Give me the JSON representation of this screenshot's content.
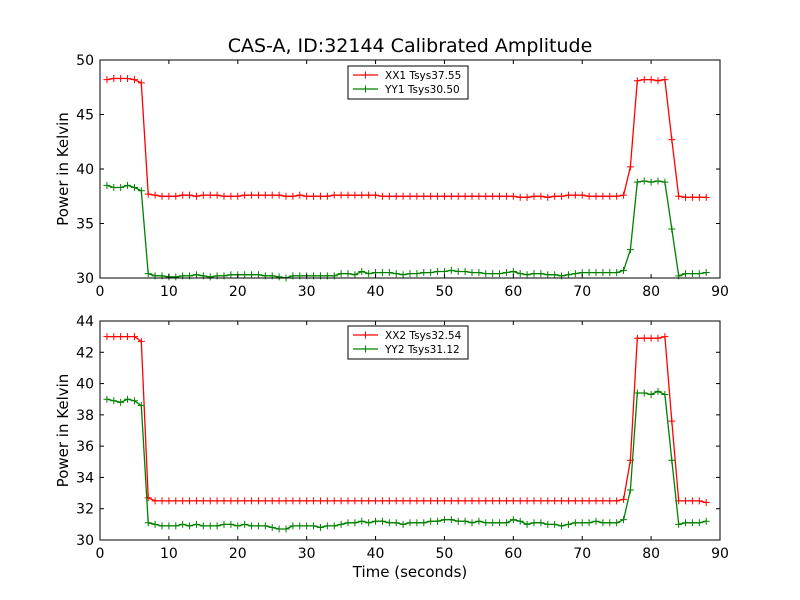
{
  "figure_title": "CAS-A, ID:32144 Calibrated Amplitude",
  "chart_data": [
    {
      "type": "line",
      "title": "CAS-A, ID:32144 Calibrated Amplitude",
      "xlabel": "",
      "ylabel": "Power in Kelvin",
      "xlim": [
        0,
        90
      ],
      "ylim": [
        30,
        50
      ],
      "xticks": [
        0,
        10,
        20,
        30,
        40,
        50,
        60,
        70,
        80,
        90
      ],
      "yticks": [
        30,
        35,
        40,
        45,
        50
      ],
      "grid": false,
      "legend_position": "top-center",
      "x": [
        1,
        2,
        3,
        4,
        5,
        6,
        7,
        8,
        9,
        10,
        11,
        12,
        13,
        14,
        15,
        16,
        17,
        18,
        19,
        20,
        21,
        22,
        23,
        24,
        25,
        26,
        27,
        28,
        29,
        30,
        31,
        32,
        33,
        34,
        35,
        36,
        37,
        38,
        39,
        40,
        41,
        42,
        43,
        44,
        45,
        46,
        47,
        48,
        49,
        50,
        51,
        52,
        53,
        54,
        55,
        56,
        57,
        58,
        59,
        60,
        61,
        62,
        63,
        64,
        65,
        66,
        67,
        68,
        69,
        70,
        71,
        72,
        73,
        74,
        75,
        76,
        77,
        78,
        79,
        80,
        81,
        82,
        83,
        84,
        85,
        86,
        87,
        88
      ],
      "series": [
        {
          "name": "XX1 Tsys37.55",
          "color": "#ff0000",
          "values": [
            48.2,
            48.3,
            48.3,
            48.3,
            48.2,
            47.9,
            37.7,
            37.6,
            37.5,
            37.5,
            37.5,
            37.6,
            37.6,
            37.5,
            37.6,
            37.6,
            37.6,
            37.5,
            37.5,
            37.5,
            37.6,
            37.6,
            37.6,
            37.6,
            37.6,
            37.6,
            37.5,
            37.5,
            37.6,
            37.5,
            37.5,
            37.5,
            37.5,
            37.6,
            37.6,
            37.6,
            37.6,
            37.6,
            37.6,
            37.6,
            37.5,
            37.5,
            37.5,
            37.5,
            37.5,
            37.5,
            37.5,
            37.5,
            37.5,
            37.5,
            37.5,
            37.5,
            37.5,
            37.5,
            37.5,
            37.5,
            37.5,
            37.5,
            37.5,
            37.5,
            37.4,
            37.4,
            37.5,
            37.5,
            37.4,
            37.5,
            37.5,
            37.6,
            37.6,
            37.6,
            37.5,
            37.5,
            37.5,
            37.5,
            37.5,
            37.6,
            40.2,
            48.1,
            48.2,
            48.2,
            48.1,
            48.2,
            42.7,
            37.5,
            37.4,
            37.4,
            37.4,
            37.4
          ]
        },
        {
          "name": "YY1 Tsys30.50",
          "color": "#008000",
          "values": [
            38.5,
            38.3,
            38.3,
            38.5,
            38.3,
            38.0,
            30.4,
            30.2,
            30.2,
            30.1,
            30.1,
            30.2,
            30.2,
            30.3,
            30.2,
            30.1,
            30.2,
            30.2,
            30.3,
            30.3,
            30.3,
            30.3,
            30.3,
            30.2,
            30.2,
            30.1,
            30.0,
            30.2,
            30.2,
            30.2,
            30.2,
            30.2,
            30.2,
            30.2,
            30.4,
            30.4,
            30.3,
            30.6,
            30.4,
            30.5,
            30.5,
            30.5,
            30.4,
            30.3,
            30.4,
            30.4,
            30.5,
            30.5,
            30.6,
            30.6,
            30.7,
            30.6,
            30.6,
            30.5,
            30.5,
            30.4,
            30.4,
            30.4,
            30.5,
            30.6,
            30.4,
            30.3,
            30.4,
            30.4,
            30.3,
            30.3,
            30.2,
            30.3,
            30.4,
            30.5,
            30.5,
            30.5,
            30.5,
            30.5,
            30.5,
            30.7,
            32.6,
            38.8,
            38.9,
            38.8,
            38.9,
            38.8,
            34.5,
            30.2,
            30.4,
            30.4,
            30.4,
            30.5
          ]
        }
      ]
    },
    {
      "type": "line",
      "title": "",
      "xlabel": "Time (seconds)",
      "ylabel": "Power in Kelvin",
      "xlim": [
        0,
        90
      ],
      "ylim": [
        30,
        44
      ],
      "xticks": [
        0,
        10,
        20,
        30,
        40,
        50,
        60,
        70,
        80,
        90
      ],
      "yticks": [
        30,
        32,
        34,
        36,
        38,
        40,
        42,
        44
      ],
      "grid": false,
      "legend_position": "top-center",
      "x": [
        1,
        2,
        3,
        4,
        5,
        6,
        7,
        8,
        9,
        10,
        11,
        12,
        13,
        14,
        15,
        16,
        17,
        18,
        19,
        20,
        21,
        22,
        23,
        24,
        25,
        26,
        27,
        28,
        29,
        30,
        31,
        32,
        33,
        34,
        35,
        36,
        37,
        38,
        39,
        40,
        41,
        42,
        43,
        44,
        45,
        46,
        47,
        48,
        49,
        50,
        51,
        52,
        53,
        54,
        55,
        56,
        57,
        58,
        59,
        60,
        61,
        62,
        63,
        64,
        65,
        66,
        67,
        68,
        69,
        70,
        71,
        72,
        73,
        74,
        75,
        76,
        77,
        78,
        79,
        80,
        81,
        82,
        83,
        84,
        85,
        86,
        87,
        88
      ],
      "series": [
        {
          "name": "XX2 Tsys32.54",
          "color": "#ff0000",
          "values": [
            43.0,
            43.0,
            43.0,
            43.0,
            43.0,
            42.7,
            32.7,
            32.5,
            32.5,
            32.5,
            32.5,
            32.5,
            32.5,
            32.5,
            32.5,
            32.5,
            32.5,
            32.5,
            32.5,
            32.5,
            32.5,
            32.5,
            32.5,
            32.5,
            32.5,
            32.5,
            32.5,
            32.5,
            32.5,
            32.5,
            32.5,
            32.5,
            32.5,
            32.5,
            32.5,
            32.5,
            32.5,
            32.5,
            32.5,
            32.5,
            32.5,
            32.5,
            32.5,
            32.5,
            32.5,
            32.5,
            32.5,
            32.5,
            32.5,
            32.5,
            32.5,
            32.5,
            32.5,
            32.5,
            32.5,
            32.5,
            32.5,
            32.5,
            32.5,
            32.5,
            32.5,
            32.5,
            32.5,
            32.5,
            32.5,
            32.5,
            32.5,
            32.5,
            32.5,
            32.5,
            32.5,
            32.5,
            32.5,
            32.5,
            32.5,
            32.6,
            35.1,
            42.9,
            42.9,
            42.9,
            42.9,
            43.0,
            37.6,
            32.5,
            32.5,
            32.5,
            32.5,
            32.4
          ]
        },
        {
          "name": "YY2 Tsys31.12",
          "color": "#008000",
          "values": [
            39.0,
            38.9,
            38.8,
            39.0,
            38.9,
            38.6,
            31.1,
            31.0,
            30.9,
            30.9,
            30.9,
            31.0,
            30.9,
            31.0,
            30.9,
            30.9,
            30.9,
            31.0,
            31.0,
            30.9,
            31.0,
            30.9,
            30.9,
            30.9,
            30.8,
            30.7,
            30.7,
            30.9,
            30.9,
            30.9,
            30.9,
            30.8,
            30.9,
            30.9,
            31.0,
            31.1,
            31.1,
            31.2,
            31.1,
            31.2,
            31.2,
            31.1,
            31.1,
            31.0,
            31.1,
            31.1,
            31.1,
            31.2,
            31.2,
            31.3,
            31.3,
            31.2,
            31.2,
            31.1,
            31.2,
            31.1,
            31.1,
            31.1,
            31.1,
            31.3,
            31.2,
            31.0,
            31.1,
            31.1,
            31.0,
            31.0,
            30.9,
            31.0,
            31.1,
            31.1,
            31.1,
            31.2,
            31.1,
            31.1,
            31.1,
            31.3,
            33.2,
            39.4,
            39.4,
            39.3,
            39.5,
            39.3,
            35.1,
            31.0,
            31.1,
            31.1,
            31.1,
            31.2
          ]
        }
      ]
    }
  ]
}
